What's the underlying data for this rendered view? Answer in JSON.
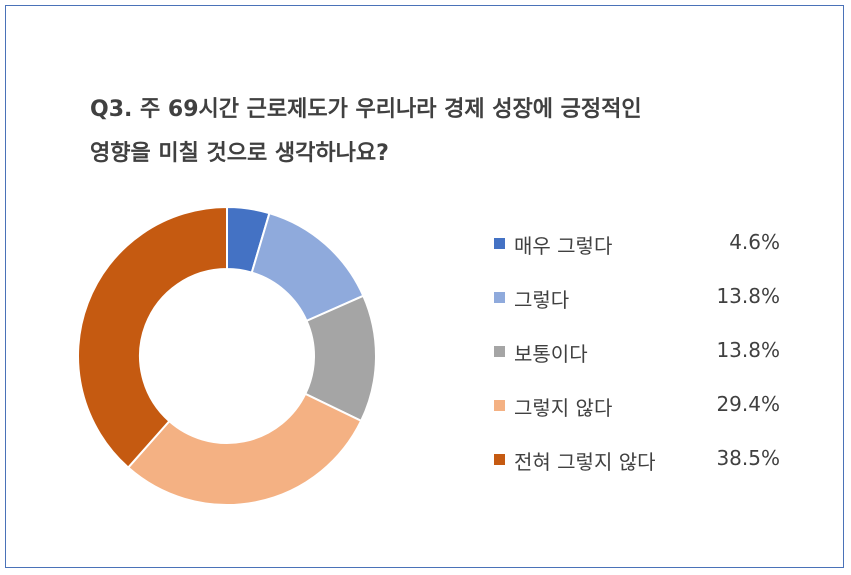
{
  "chart_data": {
    "type": "pie",
    "donut": true,
    "title_lines": [
      "Q3. 주 69시간 근로제도가 우리나라 경제 성장에 긍정적인",
      "영향을 미칠 것으로 생각하나요?"
    ],
    "categories": [
      "매우 그렇다",
      "그렇다",
      "보통이다",
      "그렇지 않다",
      "전혀 그렇지 않다"
    ],
    "values": [
      4.6,
      13.8,
      13.8,
      29.4,
      38.5
    ],
    "value_labels": [
      "4.6%",
      "13.8%",
      "13.8%",
      "29.4%",
      "38.5%"
    ],
    "colors": [
      "#4472c4",
      "#8faadc",
      "#a5a5a5",
      "#f4b183",
      "#c55a11"
    ],
    "legend_position": "right"
  }
}
